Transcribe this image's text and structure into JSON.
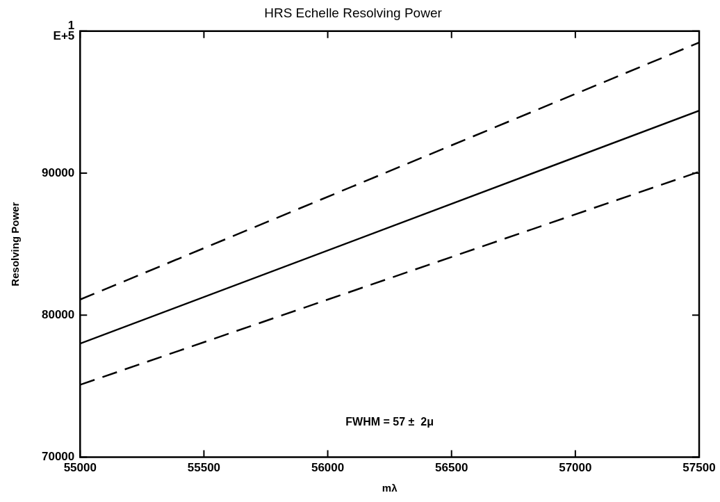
{
  "chart_data": {
    "type": "line",
    "title": "HRS Echelle Resolving Power",
    "xlabel": "mλ",
    "ylabel": "Resolving Power",
    "x": [
      55000,
      57500
    ],
    "series": [
      {
        "color": "#000000",
        "values": [
          81100,
          99200
        ],
        "line_style": "dashed"
      },
      {
        "color": "#000000",
        "values": [
          78000,
          94400
        ],
        "line_style": "solid"
      },
      {
        "color": "#000000",
        "values": [
          75100,
          90100
        ],
        "line_style": "dashed"
      }
    ],
    "xlim": [
      55000,
      57500
    ],
    "xticks": [
      55000,
      55500,
      56000,
      56500,
      57000,
      57500
    ],
    "ylim": [
      70000,
      100000
    ],
    "yticks": [
      70000,
      80000,
      90000,
      {
        "value": 100000,
        "label": "1\nE+5"
      }
    ],
    "annotations": [
      "FWHM = 57 ±  2μ"
    ],
    "grid": false,
    "legend": false,
    "marker": "none"
  }
}
